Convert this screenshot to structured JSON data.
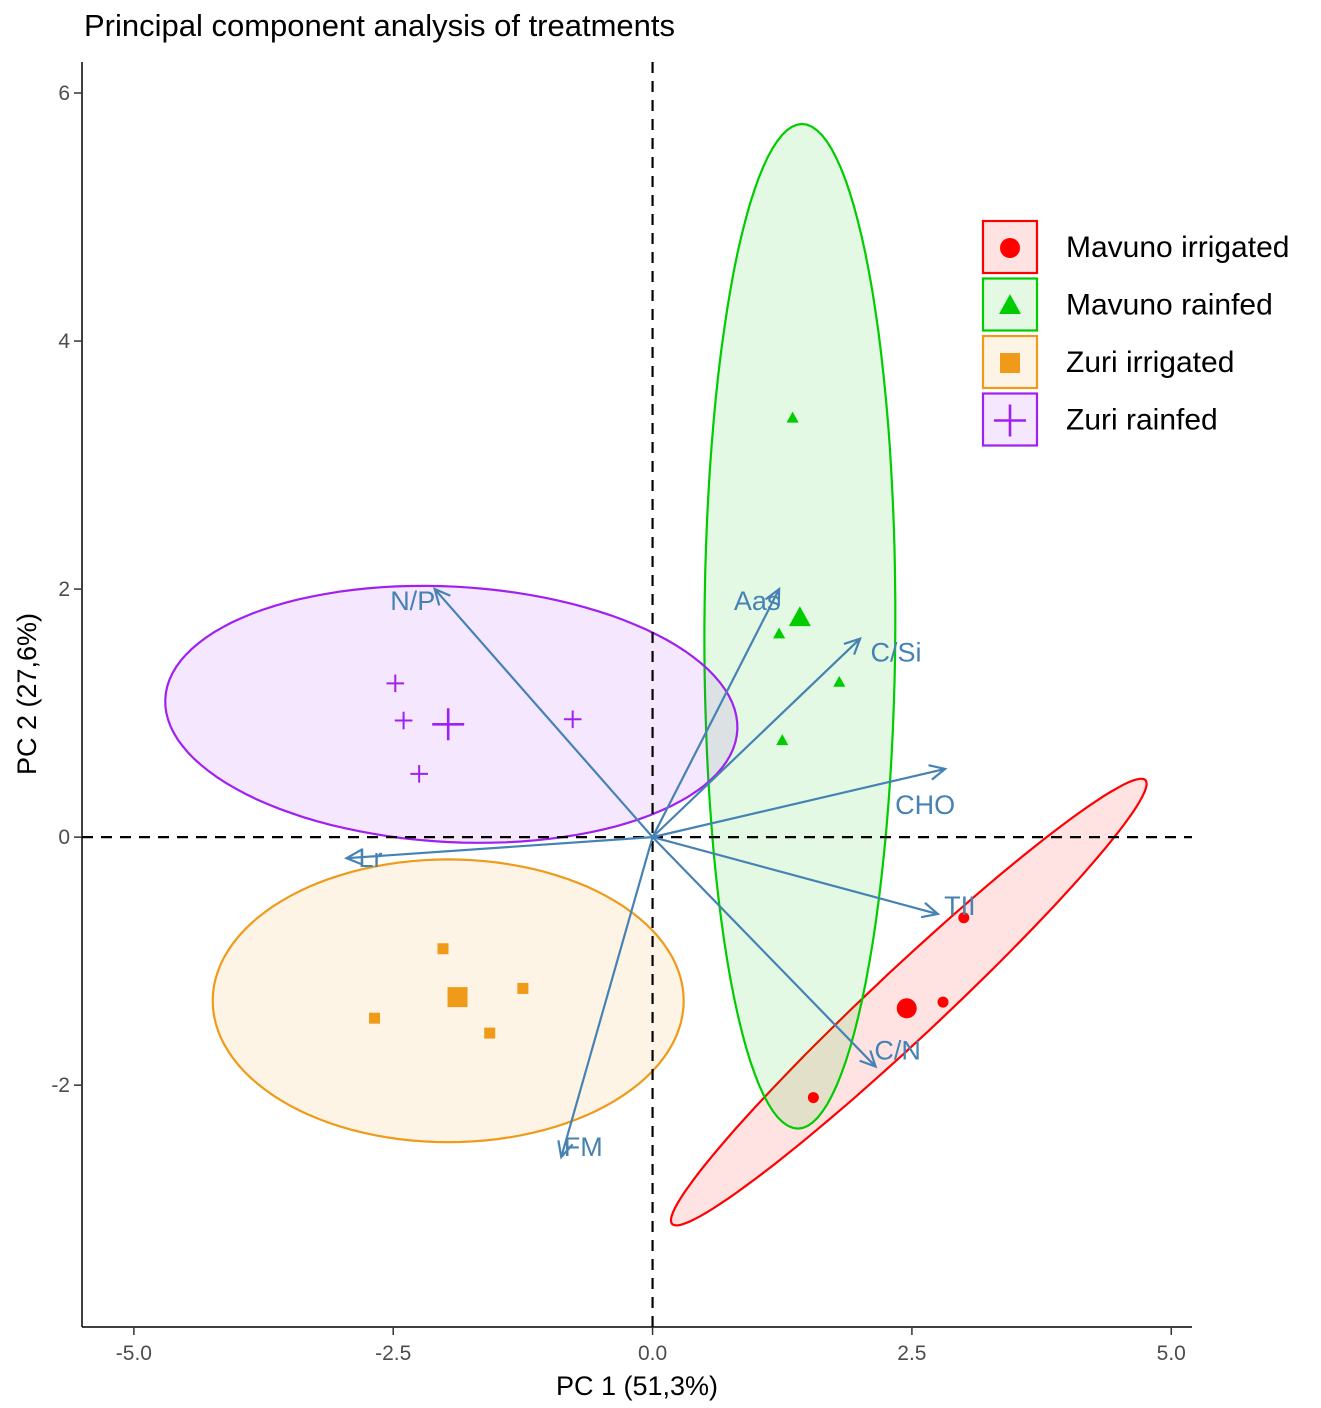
{
  "chart_data": {
    "type": "scatter",
    "title": "Principal component analysis of treatments",
    "xlabel": "PC 1 (51,3%)",
    "ylabel": "PC 2 (27,6%)",
    "xlim": [
      -5.5,
      5.2
    ],
    "ylim": [
      -3.95,
      6.25
    ],
    "xticks": [
      -5.0,
      -2.5,
      0.0,
      2.5,
      5.0
    ],
    "xtick_labels": [
      "-5.0",
      "-2.5",
      "0.0",
      "2.5",
      "5.0"
    ],
    "yticks": [
      -2,
      0,
      2,
      4,
      6
    ],
    "ytick_labels": [
      "-2",
      "0",
      "2",
      "4",
      "6"
    ],
    "grid": false,
    "reference_lines": {
      "x": 0,
      "y": 0,
      "style": "dashed"
    },
    "legend_position": "right",
    "series": [
      {
        "name": "Mavuno irrigated",
        "color": "#ff0000",
        "shape": "circle",
        "points": [
          [
            3.0,
            -0.65
          ],
          [
            2.8,
            -1.33
          ],
          [
            1.55,
            -2.1
          ]
        ],
        "centroid": [
          2.45,
          -1.38
        ],
        "ellipse": {
          "center": [
            2.47,
            -1.33
          ],
          "semi_major_axis": 2.9,
          "semi_minor_axis": 0.3,
          "angle_deg": 38
        }
      },
      {
        "name": "Mavuno rainfed",
        "color": "#00cc00",
        "shape": "triangle",
        "points": [
          [
            1.35,
            3.38
          ],
          [
            1.22,
            1.64
          ],
          [
            1.8,
            1.25
          ],
          [
            1.25,
            0.78
          ]
        ],
        "centroid": [
          1.42,
          1.77
        ],
        "ellipse": {
          "center": [
            1.42,
            1.7
          ],
          "semi_major_axis": 4.05,
          "semi_minor_axis": 0.92,
          "angle_deg": 89.7
        }
      },
      {
        "name": "Zuri irrigated",
        "color": "#f09a1a",
        "shape": "square",
        "points": [
          [
            -2.02,
            -0.9
          ],
          [
            -1.25,
            -1.22
          ],
          [
            -2.68,
            -1.46
          ],
          [
            -1.57,
            -1.58
          ]
        ],
        "centroid": [
          -1.88,
          -1.29
        ],
        "ellipse": {
          "center": [
            -1.97,
            -1.32
          ],
          "semi_major_axis": 2.27,
          "semi_minor_axis": 1.14,
          "angle_deg": 0
        }
      },
      {
        "name": "Zuri rainfed",
        "color": "#a020f0",
        "shape": "cross",
        "points": [
          [
            -2.48,
            1.24
          ],
          [
            -2.4,
            0.94
          ],
          [
            -0.77,
            0.95
          ],
          [
            -2.25,
            0.51
          ]
        ],
        "centroid": [
          -1.97,
          0.91
        ],
        "ellipse": {
          "center": [
            -1.94,
            0.99
          ],
          "semi_major_axis": 2.76,
          "semi_minor_axis": 1.03,
          "angle_deg": -2.5
        }
      }
    ],
    "loadings": [
      {
        "label": "N/P",
        "x": -2.1,
        "y": 2.0
      },
      {
        "label": "Aas",
        "x": 1.22,
        "y": 2.0
      },
      {
        "label": "C/Si",
        "x": 2.0,
        "y": 1.6
      },
      {
        "label": "CHO",
        "x": 2.82,
        "y": 0.55
      },
      {
        "label": "Lr",
        "x": -2.95,
        "y": -0.17
      },
      {
        "label": "TII",
        "x": 2.75,
        "y": -0.62
      },
      {
        "label": "C/N",
        "x": 2.15,
        "y": -1.85
      },
      {
        "label": "FM",
        "x": -0.88,
        "y": -2.58
      }
    ]
  }
}
